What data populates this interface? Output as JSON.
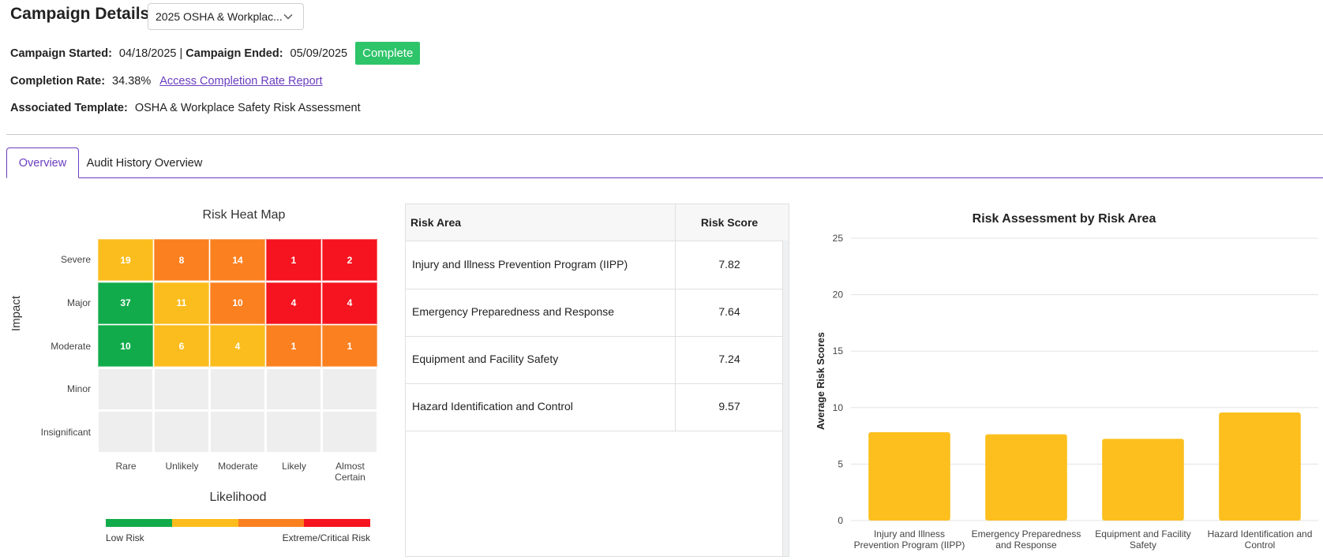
{
  "header": {
    "title": "Campaign Details:",
    "campaign_select_value": "2025 OSHA & Workplac..."
  },
  "info": {
    "started_label": "Campaign Started:",
    "started_value": "04/18/2025",
    "separator": "|",
    "ended_label": "Campaign Ended:",
    "ended_value": "05/09/2025",
    "status": "Complete",
    "status_color": "#2ec46a",
    "completion_label": "Completion Rate:",
    "completion_value": "34.38%",
    "completion_link": "Access Completion Rate Report",
    "template_label": "Associated Template:",
    "template_value": "OSHA & Workplace Safety Risk Assessment"
  },
  "tabs": [
    {
      "label": "Overview",
      "active": true
    },
    {
      "label": "Audit History Overview",
      "active": false
    }
  ],
  "heatmap": {
    "title": "Risk Heat Map",
    "y_axis_label": "Impact",
    "x_axis_label": "Likelihood",
    "rows": [
      "Severe",
      "Major",
      "Moderate",
      "Minor",
      "Insignificant"
    ],
    "columns": [
      "Rare",
      "Unlikely",
      "Moderate",
      "Likely",
      "Almost Certain"
    ],
    "cells": [
      [
        {
          "value": "19",
          "color": "#fbbd1d"
        },
        {
          "value": "8",
          "color": "#fb8020"
        },
        {
          "value": "14",
          "color": "#fb8020"
        },
        {
          "value": "1",
          "color": "#f5141f"
        },
        {
          "value": "2",
          "color": "#f5141f"
        }
      ],
      [
        {
          "value": "37",
          "color": "#12ab4b"
        },
        {
          "value": "11",
          "color": "#fbbd1d"
        },
        {
          "value": "10",
          "color": "#fb8020"
        },
        {
          "value": "4",
          "color": "#f5141f"
        },
        {
          "value": "4",
          "color": "#f5141f"
        }
      ],
      [
        {
          "value": "10",
          "color": "#12ab4b"
        },
        {
          "value": "6",
          "color": "#fbbd1d"
        },
        {
          "value": "4",
          "color": "#fbbd1d"
        },
        {
          "value": "1",
          "color": "#fb8020"
        },
        {
          "value": "1",
          "color": "#fb8020"
        }
      ],
      [
        {
          "value": "",
          "color": "#eeeeee"
        },
        {
          "value": "",
          "color": "#eeeeee"
        },
        {
          "value": "",
          "color": "#eeeeee"
        },
        {
          "value": "",
          "color": "#eeeeee"
        },
        {
          "value": "",
          "color": "#eeeeee"
        }
      ],
      [
        {
          "value": "",
          "color": "#eeeeee"
        },
        {
          "value": "",
          "color": "#eeeeee"
        },
        {
          "value": "",
          "color": "#eeeeee"
        },
        {
          "value": "",
          "color": "#eeeeee"
        },
        {
          "value": "",
          "color": "#eeeeee"
        }
      ]
    ],
    "legend": {
      "colors": [
        "#12ab4b",
        "#fbbd1d",
        "#fb8020",
        "#f5141f"
      ],
      "low_label": "Low Risk",
      "high_label": "Extreme/Critical Risk"
    }
  },
  "risk_table": {
    "headers": [
      "Risk Area",
      "Risk Score"
    ],
    "rows": [
      {
        "area": "Injury and Illness Prevention Program (IIPP)",
        "score": "7.82"
      },
      {
        "area": "Emergency Preparedness and Response",
        "score": "7.64"
      },
      {
        "area": "Equipment and Facility Safety",
        "score": "7.24"
      },
      {
        "area": "Hazard Identification and Control",
        "score": "9.57"
      }
    ]
  },
  "chart_data": {
    "type": "bar",
    "title": "Risk Assessment by Risk Area",
    "xlabel": "",
    "ylabel": "Average Risk Scores",
    "categories": [
      "Injury and Illness Prevention Program (IIPP)",
      "Emergency Preparedness and Response",
      "Equipment and Facility Safety",
      "Hazard Identification and Control"
    ],
    "category_lines": [
      [
        "Injury and Illness",
        "Prevention Program (IIPP)"
      ],
      [
        "Emergency Preparedness",
        "and Response"
      ],
      [
        "Equipment and Facility",
        "Safety"
      ],
      [
        "Hazard Identification and",
        "Control"
      ]
    ],
    "values": [
      7.82,
      7.64,
      7.24,
      9.57
    ],
    "ylim": [
      0,
      25
    ],
    "yticks": [
      "0",
      "5",
      "10",
      "15",
      "20",
      "25"
    ],
    "bar_color": "#fcbf1e",
    "grid": true
  }
}
